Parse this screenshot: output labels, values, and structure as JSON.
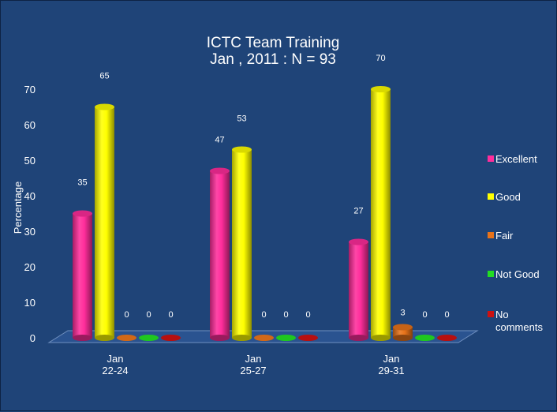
{
  "chart_data": {
    "type": "bar",
    "title": "ICTC Team Training",
    "subtitle": "Jan , 2011 : N = 93",
    "ylabel": "Percentage",
    "xlabel": "",
    "ylim": [
      0,
      70
    ],
    "yticks": [
      0,
      10,
      20,
      30,
      40,
      50,
      60,
      70
    ],
    "grid": false,
    "legend_position": "right",
    "categories": [
      [
        "Jan",
        "22-24"
      ],
      [
        "Jan",
        "25-27"
      ],
      [
        "Jan",
        "29-31"
      ]
    ],
    "series": [
      {
        "name": "Excellent",
        "color": "#ff2d9b",
        "values": [
          35,
          47,
          27
        ]
      },
      {
        "name": "Good",
        "color": "#ffff00",
        "values": [
          65,
          53,
          70
        ]
      },
      {
        "name": "Fair",
        "color": "#e8731a",
        "values": [
          0,
          0,
          3
        ]
      },
      {
        "name": "Not Good",
        "color": "#22dd22",
        "values": [
          0,
          0,
          0
        ]
      },
      {
        "name": "No comments",
        "color": "#cc1111",
        "values": [
          0,
          0,
          0
        ]
      }
    ],
    "legend_labels": [
      [
        "Excellent"
      ],
      [
        "Good"
      ],
      [
        "Fair"
      ],
      [
        "Not Good"
      ],
      [
        "No",
        "comments"
      ]
    ]
  }
}
